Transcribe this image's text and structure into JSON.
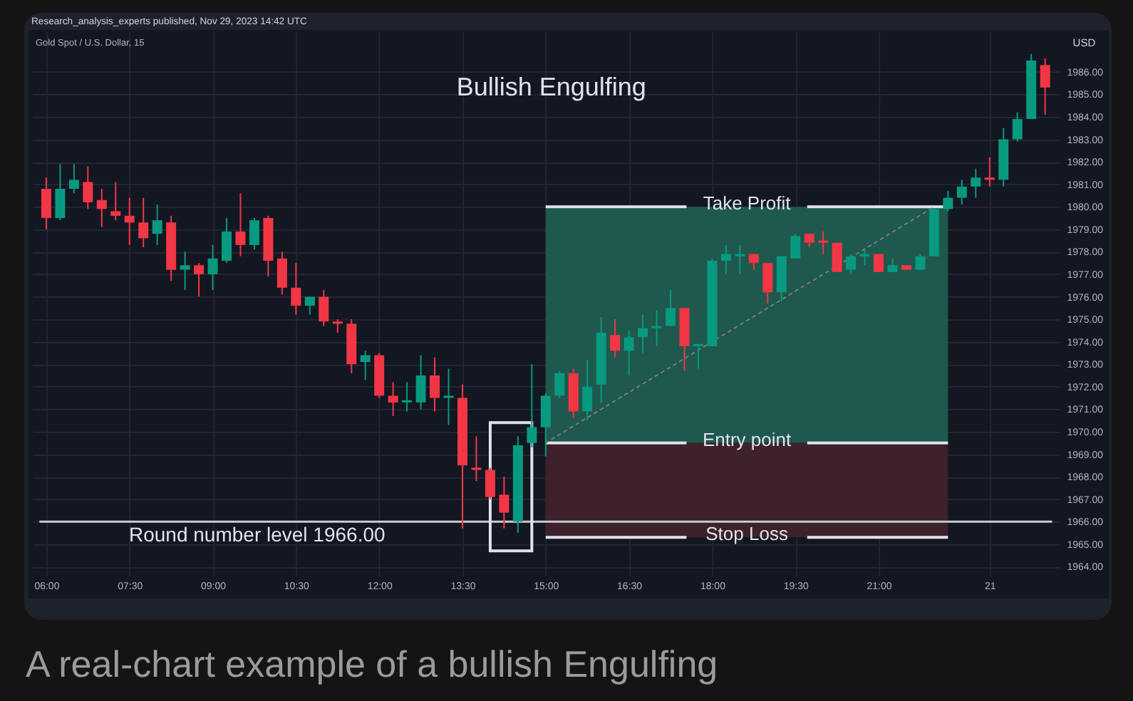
{
  "chart_data": {
    "type": "candlestick",
    "title": "Bullish Engulfing",
    "subtitle": "Gold Spot / U.S. Dollar, 15",
    "ylabel": "USD",
    "annotations": [
      "Research_analysis_experts published, Nov 29, 2023 14:42 UTC",
      {
        "text": "Entry point",
        "y": 1969.5
      },
      "A real-chart example of a bullish Engulfing"
    ],
    "categories": [
      "06:00",
      null,
      null,
      null,
      null,
      null,
      "07:30",
      null,
      null,
      null,
      null,
      null,
      "09:00",
      null,
      null,
      null,
      null,
      null,
      "10:30",
      null,
      null,
      null,
      null,
      null,
      "12:00",
      null,
      null,
      null,
      null,
      null,
      "13:30",
      null,
      null,
      null,
      null,
      null,
      "15:00",
      null,
      null,
      null,
      null,
      null,
      "16:30",
      null,
      null,
      null,
      null,
      null,
      "18:00",
      null,
      null,
      null,
      null,
      null,
      "19:30",
      null,
      null,
      null,
      null,
      null,
      "21:00",
      null,
      null,
      null,
      null,
      null,
      null,
      null,
      "21",
      null,
      null,
      null,
      null
    ],
    "ohlc": [
      [
        1980.8,
        1981.3,
        1979.0,
        1979.5
      ],
      [
        1979.5,
        1981.9,
        1979.4,
        1980.8
      ],
      [
        1980.8,
        1981.9,
        1980.6,
        1981.2
      ],
      [
        1981.1,
        1981.8,
        1979.9,
        1980.2
      ],
      [
        1980.3,
        1980.8,
        1979.1,
        1979.9
      ],
      [
        1979.8,
        1981.1,
        1979.4,
        1979.6
      ],
      [
        1979.6,
        1980.4,
        1978.3,
        1979.3
      ],
      [
        1979.3,
        1980.4,
        1978.2,
        1978.6
      ],
      [
        1978.8,
        1980.1,
        1978.3,
        1979.4
      ],
      [
        1979.3,
        1979.6,
        1976.7,
        1977.2
      ],
      [
        1977.2,
        1978.0,
        1976.3,
        1977.4
      ],
      [
        1977.4,
        1977.5,
        1976.0,
        1977.0
      ],
      [
        1977.0,
        1978.3,
        1976.3,
        1977.7
      ],
      [
        1977.6,
        1979.5,
        1977.5,
        1978.9
      ],
      [
        1978.9,
        1980.6,
        1977.8,
        1978.3
      ],
      [
        1978.3,
        1979.5,
        1978.1,
        1979.4
      ],
      [
        1979.5,
        1979.6,
        1976.9,
        1977.6
      ],
      [
        1977.7,
        1978.0,
        1976.1,
        1976.4
      ],
      [
        1976.4,
        1977.5,
        1975.2,
        1975.6
      ],
      [
        1975.6,
        1976.0,
        1975.2,
        1976.0
      ],
      [
        1976.0,
        1976.3,
        1974.7,
        1974.9
      ],
      [
        1974.9,
        1975.0,
        1974.4,
        1974.8
      ],
      [
        1974.8,
        1975.0,
        1972.6,
        1973.0
      ],
      [
        1973.1,
        1973.6,
        1972.3,
        1973.4
      ],
      [
        1973.4,
        1973.5,
        1971.5,
        1971.6
      ],
      [
        1971.6,
        1972.2,
        1970.7,
        1971.3
      ],
      [
        1971.3,
        1972.2,
        1970.9,
        1971.4
      ],
      [
        1971.3,
        1973.4,
        1971.0,
        1972.5
      ],
      [
        1972.5,
        1973.3,
        1970.9,
        1971.5
      ],
      [
        1971.5,
        1972.8,
        1970.3,
        1971.6
      ],
      [
        1971.5,
        1972.1,
        1965.7,
        1968.5
      ],
      [
        1968.4,
        1969.8,
        1967.8,
        1968.3
      ],
      [
        1968.3,
        1968.4,
        1967.0,
        1967.1
      ],
      [
        1967.2,
        1968.0,
        1965.7,
        1966.4
      ],
      [
        1966.0,
        1969.8,
        1965.5,
        1969.4
      ],
      [
        1969.5,
        1973.0,
        1969.3,
        1970.2
      ],
      [
        1970.2,
        1971.7,
        1968.9,
        1971.6
      ],
      [
        1971.6,
        1972.7,
        1971.5,
        1972.6
      ],
      [
        1972.6,
        1972.8,
        1970.6,
        1970.9
      ],
      [
        1970.9,
        1973.2,
        1970.5,
        1972.0
      ],
      [
        1972.1,
        1975.1,
        1971.3,
        1974.4
      ],
      [
        1974.3,
        1975.0,
        1973.3,
        1973.6
      ],
      [
        1973.6,
        1974.5,
        1972.5,
        1974.2
      ],
      [
        1974.2,
        1975.2,
        1973.5,
        1974.6
      ],
      [
        1974.6,
        1975.4,
        1973.8,
        1974.7
      ],
      [
        1974.7,
        1976.3,
        1974.7,
        1975.5
      ],
      [
        1975.5,
        1975.5,
        1972.7,
        1973.8
      ],
      [
        1973.8,
        1973.9,
        1972.8,
        1973.9
      ],
      [
        1973.8,
        1977.7,
        1973.8,
        1977.6
      ],
      [
        1977.6,
        1978.3,
        1977.0,
        1977.9
      ],
      [
        1977.8,
        1978.3,
        1977.0,
        1977.9
      ],
      [
        1977.9,
        1977.9,
        1977.2,
        1977.5
      ],
      [
        1977.5,
        1977.5,
        1975.7,
        1976.2
      ],
      [
        1976.2,
        1977.8,
        1975.8,
        1977.8
      ],
      [
        1977.7,
        1978.8,
        1977.7,
        1978.7
      ],
      [
        1978.8,
        1978.8,
        1978.2,
        1978.4
      ],
      [
        1978.5,
        1978.9,
        1977.9,
        1978.4
      ],
      [
        1978.4,
        1978.4,
        1977.1,
        1977.1
      ],
      [
        1977.2,
        1977.9,
        1977.0,
        1977.8
      ],
      [
        1977.8,
        1978.1,
        1977.4,
        1977.9
      ],
      [
        1977.9,
        1977.9,
        1977.1,
        1977.1
      ],
      [
        1977.1,
        1977.7,
        1977.1,
        1977.4
      ],
      [
        1977.4,
        1977.4,
        1977.2,
        1977.2
      ],
      [
        1977.2,
        1977.9,
        1977.2,
        1977.8
      ],
      [
        1977.8,
        1979.9,
        1977.8,
        1979.9
      ],
      [
        1979.9,
        1980.7,
        1979.8,
        1980.4
      ],
      [
        1980.4,
        1981.2,
        1980.1,
        1980.9
      ],
      [
        1980.9,
        1981.7,
        1980.4,
        1981.3
      ],
      [
        1981.3,
        1982.2,
        1980.9,
        1981.2
      ],
      [
        1981.2,
        1983.5,
        1980.9,
        1983.0
      ],
      [
        1983.0,
        1984.2,
        1982.9,
        1983.9
      ],
      [
        1983.9,
        1986.8,
        1983.9,
        1986.5
      ],
      [
        1986.3,
        1986.6,
        1984.1,
        1985.3
      ]
    ],
    "colors": [
      "#f23645",
      "#089981",
      "#089981",
      "#f23645",
      "#f23645",
      "#f23645",
      "#f23645",
      "#f23645",
      "#089981",
      "#f23645",
      "#089981",
      "#f23645",
      "#089981",
      "#089981",
      "#f23645",
      "#089981",
      "#f23645",
      "#f23645",
      "#f23645",
      "#089981",
      "#f23645",
      "#f23645",
      "#f23645",
      "#089981",
      "#f23645",
      "#f23645",
      "#089981",
      "#089981",
      "#f23645",
      "#089981",
      "#f23645",
      "#f23645",
      "#f23645",
      "#f23645",
      "#089981",
      "#089981",
      "#089981",
      "#089981",
      "#f23645",
      "#089981",
      "#089981",
      "#f23645",
      "#089981",
      "#089981",
      "#089981",
      "#089981",
      "#f23645",
      "#089981",
      "#089981",
      "#089981",
      "#089981",
      "#f23645",
      "#f23645",
      "#089981",
      "#089981",
      "#f23645",
      "#f23645",
      "#f23645",
      "#089981",
      "#089981",
      "#f23645",
      "#089981",
      "#f23645",
      "#089981",
      "#089981",
      "#089981",
      "#089981",
      "#089981",
      "#f23645",
      "#089981",
      "#089981",
      "#089981",
      "#f23645"
    ],
    "series": [
      {
        "type": "line",
        "line_style": "dotted",
        "color": "#787b86",
        "values": [
          null,
          null,
          null,
          null,
          null,
          null,
          null,
          null,
          null,
          null,
          null,
          null,
          null,
          null,
          null,
          null,
          null,
          null,
          null,
          null,
          null,
          null,
          null,
          null,
          null,
          null,
          null,
          null,
          null,
          null,
          null,
          null,
          null,
          null,
          null,
          null,
          1969.5,
          null,
          null,
          null,
          null,
          null,
          null,
          null,
          null,
          null,
          null,
          null,
          null,
          null,
          null,
          null,
          null,
          null,
          null,
          null,
          null,
          null,
          null,
          null,
          null,
          null,
          null,
          null,
          1980.0,
          null,
          null,
          null,
          null,
          null,
          null,
          null,
          null
        ]
      }
    ],
    "ylim": [
      1963.6,
      1987.8
    ],
    "yticks": [
      {
        "value": 1964,
        "label": "1964.00"
      },
      {
        "value": 1965,
        "label": "1965.00"
      },
      {
        "value": 1966,
        "label": "1966.00"
      },
      {
        "value": 1967,
        "label": "1967.00"
      },
      {
        "value": 1968,
        "label": "1968.00"
      },
      {
        "value": 1969,
        "label": "1969.00"
      },
      {
        "value": 1970,
        "label": "1970.00"
      },
      {
        "value": 1971,
        "label": "1971.00"
      },
      {
        "value": 1972,
        "label": "1972.00"
      },
      {
        "value": 1973,
        "label": "1973.00"
      },
      {
        "value": 1974,
        "label": "1974.00"
      },
      {
        "value": 1975,
        "label": "1975.00"
      },
      {
        "value": 1976,
        "label": "1976.00"
      },
      {
        "value": 1977,
        "label": "1977.00"
      },
      {
        "value": 1978,
        "label": "1978.00"
      },
      {
        "value": 1979,
        "label": "1979.00"
      },
      {
        "value": 1980,
        "label": "1980.00"
      },
      {
        "value": 1981,
        "label": "1981.00"
      },
      {
        "value": 1982,
        "label": "1982.00"
      },
      {
        "value": 1983,
        "label": "1983.00"
      },
      {
        "value": 1984,
        "label": "1984.00"
      },
      {
        "value": 1985,
        "label": "1985.00"
      },
      {
        "value": 1986,
        "label": "1986.00"
      }
    ],
    "grid": true,
    "bands": [
      {
        "axis": "y",
        "from": 1969.5,
        "to": 1980.0,
        "label": "Take Profit",
        "color": "#1f584c"
      },
      {
        "axis": "y",
        "from": 1969.5,
        "to": 1965.3,
        "label": "Stop Loss",
        "color": "#3e212b"
      }
    ],
    "ref_lines": [
      {
        "axis": "y",
        "value": 1966.0,
        "label": "Round number level 1966.00",
        "color": "#c8cbd2"
      }
    ]
  }
}
